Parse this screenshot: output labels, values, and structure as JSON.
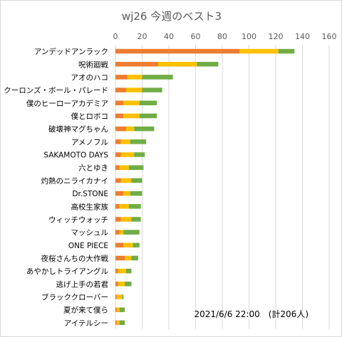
{
  "chart_data": {
    "type": "bar",
    "orientation": "horizontal",
    "stacked": true,
    "title": "wj26 今週のベスト3",
    "annotation": "2021/6/6 22:00　(計206人)",
    "xlim": [
      0,
      160
    ],
    "xticks": [
      0,
      20,
      40,
      60,
      80,
      100,
      120,
      140,
      160
    ],
    "grid": true,
    "legend": "none",
    "categories": [
      "アンデッドアンラック",
      "呪術廻戦",
      "アオのハコ",
      "クーロンズ・ボール・パレード",
      "僕のヒーローアカデミア",
      "僕とロボコ",
      "破壊神マグちゃん",
      "アメノフル",
      "SAKAMOTO DAYS",
      "六とゆき",
      "灼熱のニライカナイ",
      "Dr.STONE",
      "高校生家族",
      "ウィッチウォッチ",
      "マッシュル",
      "ONE PIECE",
      "夜桜さんちの大作戦",
      "あやかしトライアングル",
      "逃げ上手の若君",
      "ブラッククローバー",
      "夏が来て僕ら",
      "アイテルシー"
    ],
    "series": [
      {
        "color": "#ed7d31",
        "values": [
          93,
          32,
          9,
          8,
          6,
          6,
          8,
          4,
          4,
          3,
          4,
          6,
          3,
          4,
          3,
          6,
          7,
          2,
          2,
          1,
          1,
          1
        ]
      },
      {
        "color": "#ffc000",
        "values": [
          29,
          29,
          11,
          12,
          12,
          12,
          6,
          7,
          10,
          7,
          8,
          5,
          7,
          8,
          3,
          7,
          5,
          6,
          5,
          4,
          2,
          2
        ]
      },
      {
        "color": "#70ad47",
        "values": [
          12,
          16,
          23,
          15,
          13,
          13,
          15,
          12,
          8,
          11,
          8,
          9,
          9,
          7,
          12,
          5,
          5,
          4,
          5,
          1,
          4,
          4
        ]
      }
    ]
  }
}
